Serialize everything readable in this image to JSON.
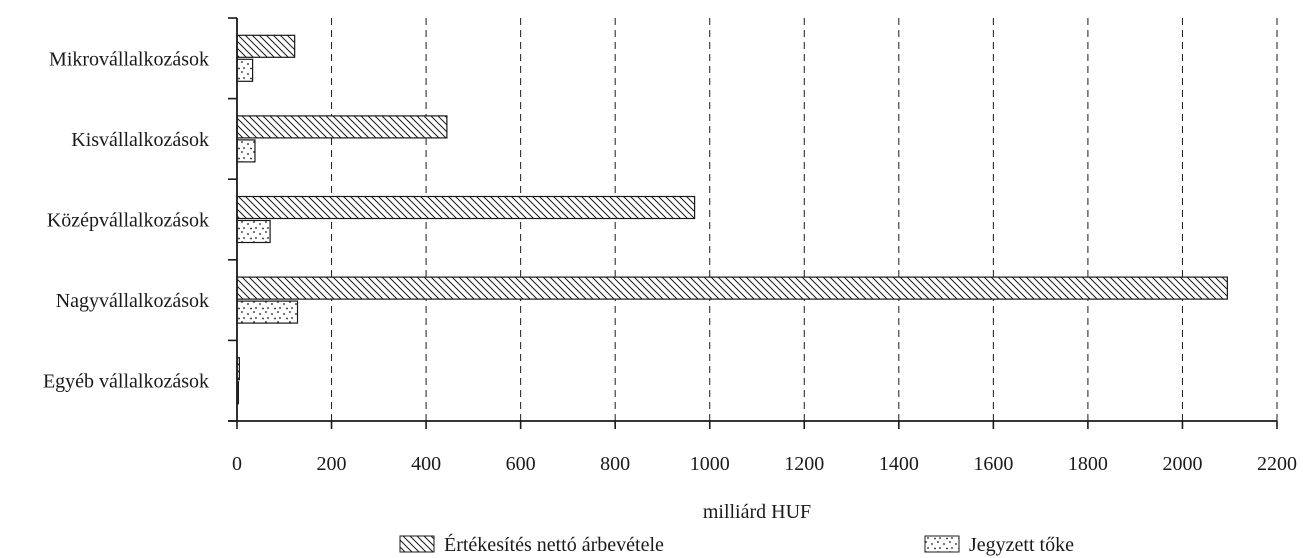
{
  "chart_data": {
    "type": "bar",
    "orientation": "horizontal",
    "categories": [
      "Mikrovállalkozások",
      "Kisvállalkozások",
      "Középvállalkozások",
      "Nagyvállalkozások",
      "Egyéb vállalkozások"
    ],
    "series": [
      {
        "name": "Értékesítés nettó árbevétele",
        "values": [
          122,
          444,
          968,
          2095,
          5
        ],
        "pattern": "diagonal-hatch"
      },
      {
        "name": "Jegyzett tőke",
        "values": [
          33,
          38,
          70,
          128,
          3
        ],
        "pattern": "dots"
      }
    ],
    "title": "",
    "xlabel": "milliárd HUF",
    "ylabel": "",
    "xlim": [
      0,
      2200
    ],
    "xticks": [
      0,
      200,
      400,
      600,
      800,
      1000,
      1200,
      1400,
      1600,
      1800,
      2000,
      2200
    ],
    "grid": "vertical-dashed",
    "legend_position": "bottom"
  }
}
